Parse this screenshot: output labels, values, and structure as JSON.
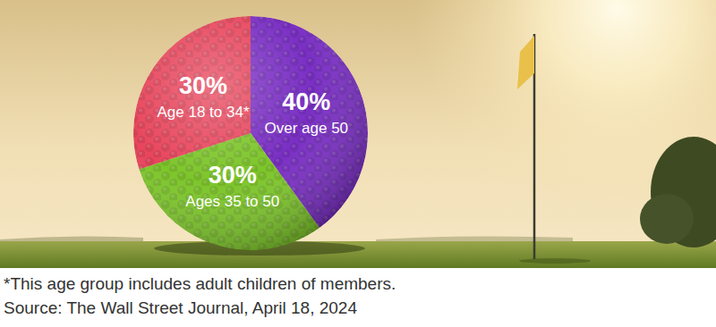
{
  "chart_data": {
    "type": "pie",
    "categories": [
      "Over age 50",
      "Ages 35 to 50",
      "Age 18 to 34*"
    ],
    "values": [
      40,
      30,
      30
    ],
    "value_labels": [
      "40%",
      "30%",
      "30%"
    ],
    "colors": [
      "#7a2fc4",
      "#7dc52b",
      "#e8455c"
    ],
    "data_labels": true,
    "footnote": "*This age group includes adult children of members.",
    "source": "Source: The Wall Street Journal, April 18, 2024"
  }
}
